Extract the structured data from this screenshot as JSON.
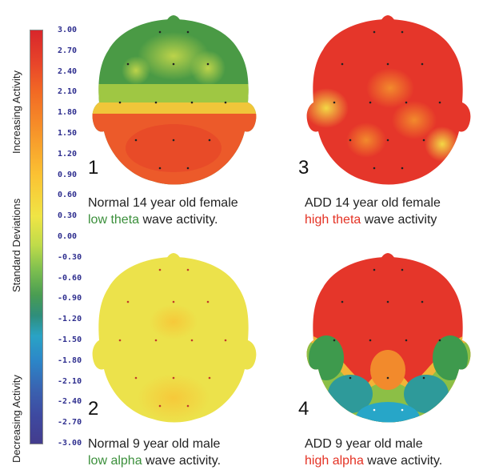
{
  "colorbar": {
    "ticks": [
      "3.00",
      "2.70",
      "2.40",
      "2.10",
      "1.80",
      "1.50",
      "1.20",
      "0.90",
      "0.60",
      "0.30",
      "0.00",
      "-0.30",
      "-0.60",
      "-0.90",
      "-1.20",
      "-1.50",
      "-1.80",
      "-2.10",
      "-2.40",
      "-2.70",
      "-3.00"
    ],
    "label_increasing": "Increasing Activity",
    "label_sd": "Standard Deviations",
    "label_decreasing": "Decreasing Activity"
  },
  "panels": [
    {
      "number": "1",
      "line1": "Normal 14 year old female",
      "line2_highlight": "low theta",
      "line2_rest": " wave activity.",
      "highlight_color": "#3b8f3b"
    },
    {
      "number": "2",
      "line1": "Normal 9 year old male",
      "line2_highlight": "low alpha",
      "line2_rest": " wave activity.",
      "highlight_color": "#3b8f3b"
    },
    {
      "number": "3",
      "line1": "ADD 14 year old female",
      "line2_highlight": "high theta",
      "line2_rest": " wave activity",
      "highlight_color": "#e43224"
    },
    {
      "number": "4",
      "line1": "ADD 9 year old male",
      "line2_highlight": "high alpha",
      "line2_rest": " wave activity.",
      "highlight_color": "#e43224"
    }
  ],
  "colors": {
    "red": "#e8372a",
    "orange": "#f26a24",
    "yellow": "#efe24a",
    "green": "#4a9a45",
    "cyan": "#27a6c8",
    "white": "#ffffff"
  }
}
